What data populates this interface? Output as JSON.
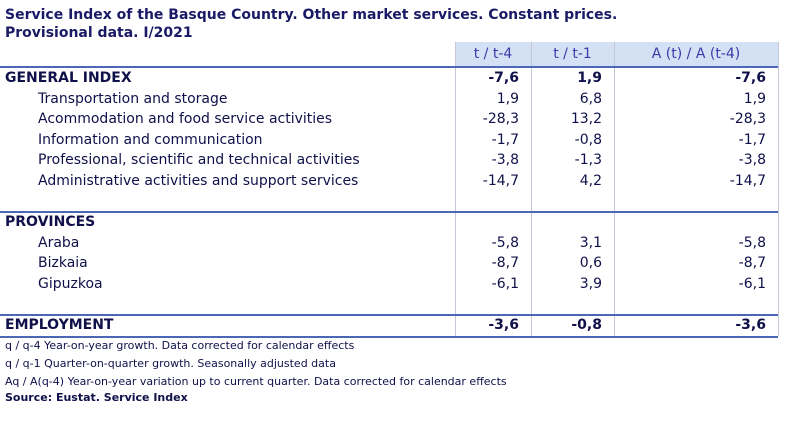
{
  "title": [
    "Service Index of the Basque Country. Other market services. Constant prices.",
    "Provisional data.  I/2021"
  ],
  "table": {
    "columns": [
      "t / t-4",
      "t / t-1",
      "A (t) / A (t-4)"
    ],
    "sections": [
      {
        "title": "GENERAL INDEX",
        "values": [
          "-7,6",
          "1,9",
          "-7,6"
        ],
        "rows": [
          {
            "label": "Transportation and storage",
            "values": [
              "1,9",
              "6,8",
              "1,9"
            ]
          },
          {
            "label": "Acommodation and food service activities",
            "values": [
              "-28,3",
              "13,2",
              "-28,3"
            ]
          },
          {
            "label": "Information and communication",
            "values": [
              "-1,7",
              "-0,8",
              "-1,7"
            ]
          },
          {
            "label": "Professional, scientific and technical activities",
            "values": [
              "-3,8",
              "-1,3",
              "-3,8"
            ]
          },
          {
            "label": "Administrative activities and support services",
            "values": [
              "-14,7",
              "4,2",
              "-14,7"
            ]
          }
        ]
      },
      {
        "title": "PROVINCES",
        "rows": [
          {
            "label": "Araba",
            "values": [
              "-5,8",
              "3,1",
              "-5,8"
            ]
          },
          {
            "label": "Bizkaia",
            "values": [
              "-8,7",
              "0,6",
              "-8,7"
            ]
          },
          {
            "label": "Gipuzkoa",
            "values": [
              "-6,1",
              "3,9",
              "-6,1"
            ]
          }
        ]
      },
      {
        "title": "EMPLOYMENT",
        "values": [
          "-3,6",
          "-0,8",
          "-3,6"
        ],
        "rows": []
      }
    ]
  },
  "notes": [
    "q / q-4 Year-on-year growth. Data corrected for calendar effects",
    "q / q-1 Quarter-on-quarter growth. Seasonally adjusted data",
    "Aq / A(q-4) Year-on-year variation up to current quarter. Data corrected for calendar effects"
  ],
  "source": "Source: Eustat. Service Index"
}
